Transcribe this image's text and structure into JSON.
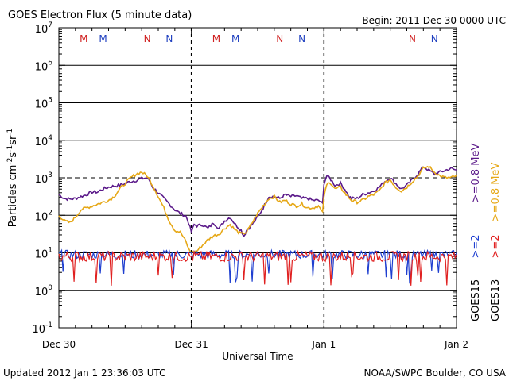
{
  "chart_data": {
    "type": "line",
    "title": "GOES Electron Flux (5 minute data)",
    "begin": "Begin: 2011 Dec 30 0000 UTC",
    "xlabel": "Universal Time",
    "ylabel": "Particles cm",
    "ylabel_parts": [
      "Particles cm",
      "-2",
      "s",
      "-1",
      "sr",
      "-1"
    ],
    "y_scale": "log",
    "ylim_exponent": [
      -1,
      7
    ],
    "y_tick_exponents": [
      -1,
      0,
      1,
      2,
      3,
      4,
      5,
      6,
      7
    ],
    "y_tick_base": "10",
    "x_range_hours": [
      0,
      72
    ],
    "x_ticks": [
      {
        "label": "Dec 30",
        "hour": 0
      },
      {
        "label": "Dec 31",
        "hour": 24
      },
      {
        "label": "Jan 1",
        "hour": 48
      },
      {
        "label": "Jan 2",
        "hour": 72
      }
    ],
    "threshold_exponent": 3,
    "markers": [
      {
        "label": "M",
        "hour": 4.5,
        "color": "#d02020"
      },
      {
        "label": "M",
        "hour": 8.0,
        "color": "#2040c0"
      },
      {
        "label": "N",
        "hour": 16.0,
        "color": "#d02020"
      },
      {
        "label": "N",
        "hour": 20.0,
        "color": "#2040c0"
      },
      {
        "label": "M",
        "hour": 28.5,
        "color": "#d02020"
      },
      {
        "label": "M",
        "hour": 32.0,
        "color": "#2040c0"
      },
      {
        "label": "N",
        "hour": 40.0,
        "color": "#d02020"
      },
      {
        "label": "N",
        "hour": 44.0,
        "color": "#2040c0"
      },
      {
        "label": "N",
        "hour": 64.0,
        "color": "#d02020"
      },
      {
        "label": "N",
        "hour": 68.0,
        "color": "#2040c0"
      }
    ],
    "series": [
      {
        "name": ">=0.8 MeV (GOES15)",
        "color": "#5b1a8a",
        "points": [
          [
            0,
            2.55
          ],
          [
            1,
            2.45
          ],
          [
            2,
            2.43
          ],
          [
            3,
            2.45
          ],
          [
            4,
            2.5
          ],
          [
            5,
            2.55
          ],
          [
            6,
            2.62
          ],
          [
            7,
            2.62
          ],
          [
            8,
            2.7
          ],
          [
            9,
            2.75
          ],
          [
            10,
            2.78
          ],
          [
            11,
            2.8
          ],
          [
            12,
            2.85
          ],
          [
            13,
            2.9
          ],
          [
            14,
            2.93
          ],
          [
            15,
            2.98
          ],
          [
            16,
            3.0
          ],
          [
            16.5,
            2.9
          ],
          [
            17,
            2.75
          ],
          [
            18,
            2.6
          ],
          [
            19,
            2.45
          ],
          [
            20,
            2.3
          ],
          [
            21,
            2.15
          ],
          [
            22,
            2.05
          ],
          [
            23,
            1.98
          ],
          [
            23.5,
            1.8
          ],
          [
            24,
            1.55
          ],
          [
            24.5,
            1.75
          ],
          [
            25,
            1.72
          ],
          [
            26,
            1.75
          ],
          [
            27,
            1.65
          ],
          [
            28,
            1.8
          ],
          [
            29,
            1.65
          ],
          [
            30,
            1.85
          ],
          [
            31,
            1.95
          ],
          [
            32,
            1.75
          ],
          [
            33,
            1.6
          ],
          [
            33.5,
            1.45
          ],
          [
            34,
            1.6
          ],
          [
            35,
            1.75
          ],
          [
            36,
            1.95
          ],
          [
            37,
            2.2
          ],
          [
            38,
            2.5
          ],
          [
            39,
            2.5
          ],
          [
            40,
            2.45
          ],
          [
            41,
            2.55
          ],
          [
            42,
            2.5
          ],
          [
            43,
            2.52
          ],
          [
            44,
            2.45
          ],
          [
            45,
            2.45
          ],
          [
            46,
            2.4
          ],
          [
            47,
            2.4
          ],
          [
            47.8,
            2.3
          ],
          [
            48,
            2.85
          ],
          [
            48.5,
            3.05
          ],
          [
            49,
            3.0
          ],
          [
            50,
            2.8
          ],
          [
            51,
            2.85
          ],
          [
            52,
            2.65
          ],
          [
            52.5,
            2.5
          ],
          [
            53,
            2.45
          ],
          [
            54,
            2.45
          ],
          [
            55,
            2.55
          ],
          [
            56,
            2.6
          ],
          [
            57,
            2.65
          ],
          [
            58,
            2.75
          ],
          [
            59,
            2.9
          ],
          [
            60,
            3.0
          ],
          [
            61,
            2.85
          ],
          [
            62,
            2.7
          ],
          [
            63,
            2.8
          ],
          [
            64,
            2.95
          ],
          [
            65,
            3.1
          ],
          [
            66,
            3.3
          ],
          [
            67,
            3.2
          ],
          [
            68,
            3.1
          ],
          [
            69,
            3.15
          ],
          [
            70,
            3.2
          ],
          [
            71,
            3.25
          ],
          [
            72,
            3.2
          ]
        ]
      },
      {
        "name": ">=0.8 MeV (GOES13)",
        "color": "#e6a817",
        "points": [
          [
            0,
            2.0
          ],
          [
            1,
            1.85
          ],
          [
            2,
            1.8
          ],
          [
            3,
            1.95
          ],
          [
            4,
            2.15
          ],
          [
            5,
            2.2
          ],
          [
            6,
            2.25
          ],
          [
            7,
            2.3
          ],
          [
            8,
            2.35
          ],
          [
            9,
            2.4
          ],
          [
            10,
            2.5
          ],
          [
            11,
            2.7
          ],
          [
            12,
            2.85
          ],
          [
            13,
            3.0
          ],
          [
            14,
            3.1
          ],
          [
            15,
            3.15
          ],
          [
            15.5,
            3.1
          ],
          [
            16,
            3.05
          ],
          [
            17,
            2.8
          ],
          [
            18,
            2.5
          ],
          [
            19,
            2.2
          ],
          [
            20,
            1.85
          ],
          [
            21,
            1.6
          ],
          [
            22,
            1.55
          ],
          [
            23,
            1.3
          ],
          [
            23.5,
            1.1
          ],
          [
            24,
            1.0
          ],
          [
            25,
            1.05
          ],
          [
            26,
            1.2
          ],
          [
            27,
            1.35
          ],
          [
            28,
            1.45
          ],
          [
            29,
            1.5
          ],
          [
            30,
            1.65
          ],
          [
            31,
            1.75
          ],
          [
            32,
            1.6
          ],
          [
            33,
            1.5
          ],
          [
            34,
            1.55
          ],
          [
            35,
            1.8
          ],
          [
            36,
            2.05
          ],
          [
            37,
            2.25
          ],
          [
            38,
            2.45
          ],
          [
            39,
            2.5
          ],
          [
            40,
            2.35
          ],
          [
            41,
            2.4
          ],
          [
            42,
            2.3
          ],
          [
            43,
            2.25
          ],
          [
            44,
            2.3
          ],
          [
            45,
            2.2
          ],
          [
            46,
            2.2
          ],
          [
            47,
            2.25
          ],
          [
            47.8,
            2.05
          ],
          [
            48,
            2.5
          ],
          [
            48.5,
            2.8
          ],
          [
            49,
            2.9
          ],
          [
            50,
            2.7
          ],
          [
            51,
            2.75
          ],
          [
            52,
            2.55
          ],
          [
            53,
            2.4
          ],
          [
            54,
            2.35
          ],
          [
            55,
            2.4
          ],
          [
            56,
            2.5
          ],
          [
            57,
            2.55
          ],
          [
            58,
            2.65
          ],
          [
            59,
            2.85
          ],
          [
            60,
            2.95
          ],
          [
            61,
            2.75
          ],
          [
            62,
            2.65
          ],
          [
            63,
            2.75
          ],
          [
            64,
            2.9
          ],
          [
            65,
            3.05
          ],
          [
            66,
            3.25
          ],
          [
            67,
            3.3
          ],
          [
            68,
            3.15
          ],
          [
            69,
            3.05
          ],
          [
            70,
            3.0
          ],
          [
            71,
            3.0
          ],
          [
            72,
            3.05
          ]
        ]
      },
      {
        "name": ">=2 MeV (GOES15)",
        "color": "#1f3fd0",
        "level_exponent": 0.95,
        "noise": 0.12
      },
      {
        "name": ">=2 MeV (GOES13)",
        "color": "#e02020",
        "level_exponent": 0.9,
        "noise": 0.14
      }
    ],
    "legend": [
      {
        "text": "GOES15",
        "color": "#000000",
        "pos": "bottom-left"
      },
      {
        "text": ">=2",
        "color": "#1f3fd0",
        "pos": "blue-2"
      },
      {
        "text": ">=0.8 MeV",
        "color": "#5b1a8a",
        "pos": "purple-08"
      },
      {
        "text": "GOES13",
        "color": "#000000",
        "pos": "bottom-right"
      },
      {
        "text": ">=2",
        "color": "#e02020",
        "pos": "red-2"
      },
      {
        "text": ">=0.8 MeV",
        "color": "#e6a817",
        "pos": "orange-08"
      }
    ]
  },
  "footer": {
    "updated": "Updated 2012 Jan  1 23:36:03 UTC",
    "source": "NOAA/SWPC Boulder, CO USA"
  }
}
